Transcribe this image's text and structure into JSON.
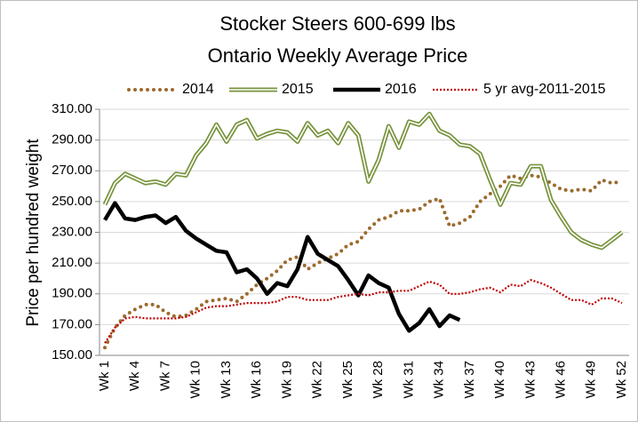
{
  "chart_data": {
    "type": "line",
    "title": "Stocker Steers 600-699 lbs",
    "subtitle": "Ontario Weekly Average Price",
    "y_label": "Price per hundred weight",
    "categories": [
      "Wk 1",
      null,
      null,
      "Wk 4",
      null,
      null,
      "Wk 7",
      null,
      null,
      "Wk 10",
      null,
      null,
      "Wk 13",
      null,
      null,
      "Wk 16",
      null,
      null,
      "Wk 19",
      null,
      null,
      "Wk 22",
      null,
      null,
      "Wk 25",
      null,
      null,
      "Wk 28",
      null,
      null,
      "Wk 31",
      null,
      null,
      "Wk 34",
      null,
      null,
      "Wk 37",
      null,
      null,
      "Wk 40",
      null,
      null,
      "Wk 43",
      null,
      null,
      "Wk 46",
      null,
      null,
      "Wk 49",
      null,
      null,
      "Wk 52"
    ],
    "ylim": [
      150,
      310
    ],
    "yticks": [
      {
        "value": 150,
        "label": "150.00"
      },
      {
        "value": 170,
        "label": "170.00"
      },
      {
        "value": 190,
        "label": "190.00"
      },
      {
        "value": 210,
        "label": "210.00"
      },
      {
        "value": 230,
        "label": "230.00"
      },
      {
        "value": 250,
        "label": "250.00"
      },
      {
        "value": 270,
        "label": "270.00"
      },
      {
        "value": 290,
        "label": "290.00"
      },
      {
        "value": 310,
        "label": "310.00"
      }
    ],
    "grid": true,
    "legend": "top",
    "series": [
      {
        "name": "2014",
        "color": "#9c6a2e",
        "style": "dotted",
        "values": [
          155,
          168,
          176,
          180,
          183,
          183,
          178,
          175,
          176,
          180,
          185,
          186,
          187,
          185,
          190,
          196,
          200,
          205,
          212,
          214,
          206,
          210,
          213,
          216,
          222,
          224,
          232,
          238,
          240,
          244,
          244,
          245,
          250,
          252,
          234,
          236,
          240,
          250,
          255,
          260,
          267,
          265,
          267,
          266,
          262,
          258,
          257,
          258,
          257,
          264,
          262,
          263
        ]
      },
      {
        "name": "2015",
        "color": "#77933c",
        "style": "double",
        "values": [
          248,
          262,
          268,
          265,
          262,
          263,
          261,
          268,
          267,
          280,
          288,
          300,
          289,
          300,
          303,
          291,
          294,
          296,
          295,
          289,
          301,
          293,
          296,
          288,
          301,
          293,
          263,
          277,
          299,
          285,
          302,
          300,
          307,
          296,
          293,
          287,
          286,
          281,
          264,
          248,
          262,
          261,
          273,
          273,
          251,
          240,
          230,
          225,
          222,
          220,
          225,
          230
        ]
      },
      {
        "name": "2016",
        "color": "#000000",
        "style": "solid",
        "values": [
          238,
          249,
          239,
          238,
          240,
          241,
          236,
          240,
          231,
          226,
          222,
          218,
          217,
          204,
          206,
          200,
          190,
          197,
          195,
          206,
          227,
          216,
          212,
          208,
          199,
          189,
          202,
          197,
          194,
          177,
          166,
          171,
          180,
          169,
          176,
          173,
          null,
          null,
          null,
          null,
          null,
          null,
          null,
          null,
          null,
          null,
          null,
          null,
          null,
          null,
          null,
          null
        ]
      },
      {
        "name": "5 yr avg-2011-2015",
        "color": "#c00000",
        "style": "dashed",
        "values": [
          158,
          168,
          174,
          175,
          174,
          174,
          174,
          174,
          175,
          178,
          181,
          182,
          182,
          183,
          184,
          184,
          184,
          185,
          188,
          188,
          186,
          186,
          186,
          188,
          189,
          190,
          189,
          191,
          191,
          192,
          192,
          195,
          198,
          196,
          190,
          190,
          191,
          193,
          194,
          191,
          196,
          195,
          199,
          197,
          194,
          190,
          186,
          186,
          183,
          187,
          187,
          184
        ]
      }
    ]
  }
}
